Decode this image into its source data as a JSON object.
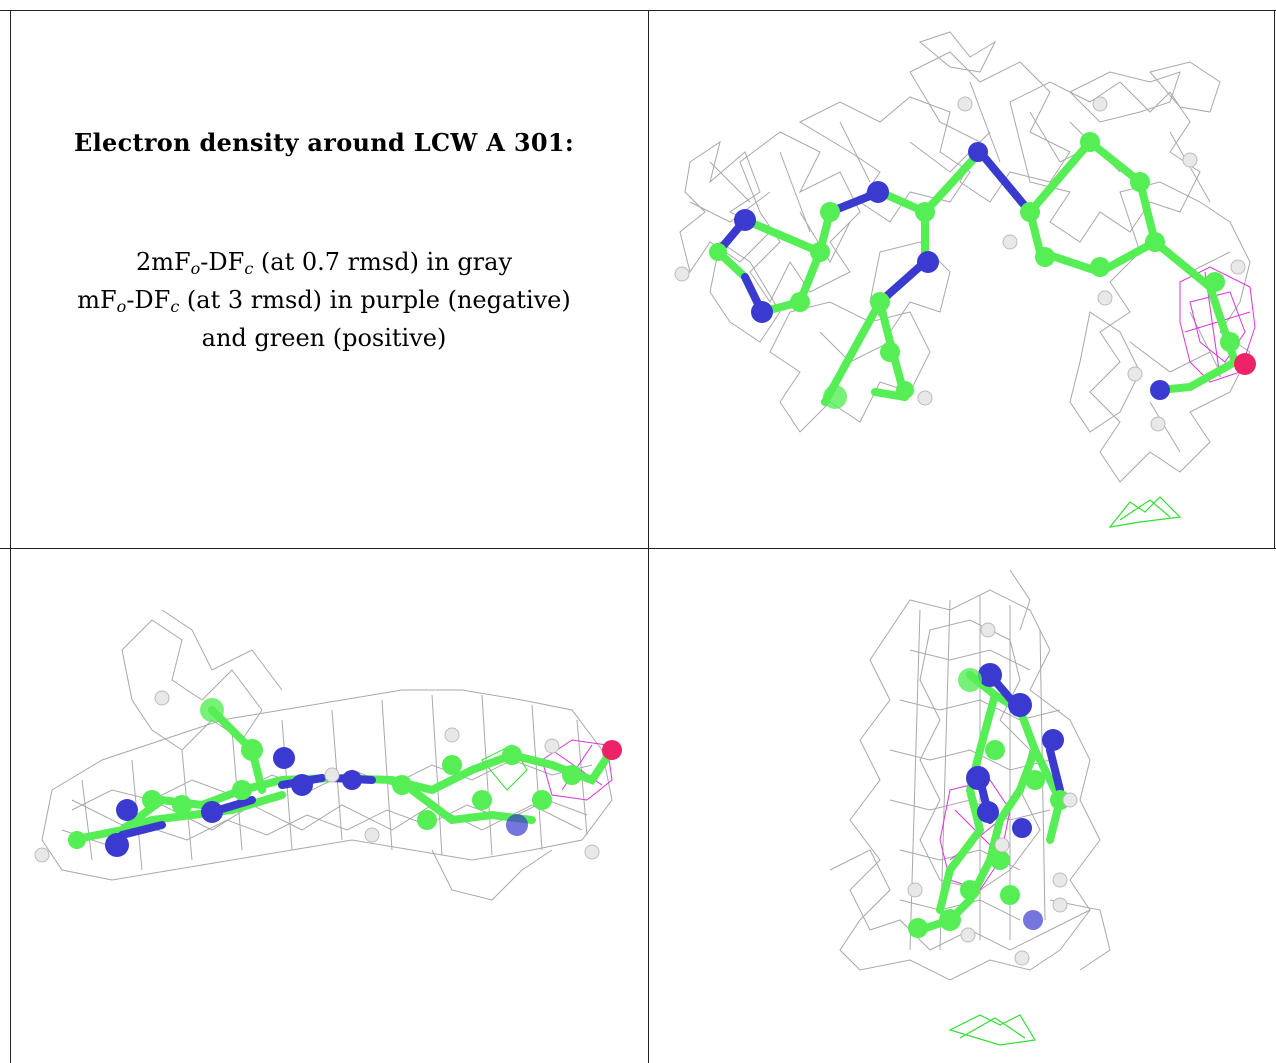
{
  "caption": {
    "title": "Electron density around LCW A 301:",
    "line1": {
      "pre": "2mF",
      "sub1": "o",
      "mid": "-DF",
      "sub2": "c",
      "post": " (at 0.7 rmsd) in gray"
    },
    "line2": {
      "pre": "mF",
      "sub1": "o",
      "mid": "-DF",
      "sub2": "c",
      "post": " (at 3 rmsd) in purple (negative)"
    },
    "line3": "and green (positive)"
  },
  "colors": {
    "carbon": "#55ee55",
    "nitrogen": "#3a3ad0",
    "oxygen": "#ee2266",
    "hydrogen": "#e8e8e8",
    "mesh_2fofc": "#a8a8a8",
    "mesh_negative": "#dd33dd",
    "mesh_positive": "#33dd33"
  },
  "panels": [
    {
      "view": "front"
    },
    {
      "view": "side"
    },
    {
      "view": "top"
    }
  ]
}
